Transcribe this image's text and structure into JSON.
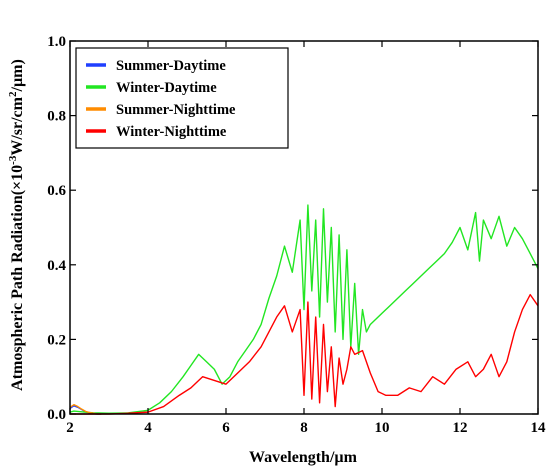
{
  "chart_data": {
    "type": "line",
    "title": "",
    "xlabel": "Wavelength/µm",
    "ylabel_main": "Atmospheric Path Radiation(×10",
    "ylabel_sup1": "-3",
    "ylabel_mid": "W/sr/cm",
    "ylabel_sup2": "2",
    "ylabel_end": "/µm)",
    "xlim": [
      2,
      14
    ],
    "ylim": [
      0,
      1.0
    ],
    "xticks": [
      "2",
      "4",
      "6",
      "8",
      "10",
      "12",
      "14"
    ],
    "yticks": [
      "0.0",
      "0.2",
      "0.4",
      "0.6",
      "0.8",
      "1.0"
    ],
    "grid": false,
    "legend_position": "top-left",
    "series": [
      {
        "name": "Summer-Daytime",
        "color": "#1f3fff",
        "x": [
          2.0,
          2.1,
          2.2,
          2.3,
          2.4,
          2.5,
          2.6,
          2.7,
          2.8
        ],
        "y": [
          0.015,
          0.022,
          0.018,
          0.012,
          0.006,
          0.003,
          0.001,
          0.0,
          0.0
        ]
      },
      {
        "name": "Winter-Daytime",
        "color": "#22e622",
        "x": [
          2.0,
          2.1,
          2.3,
          2.6,
          3.0,
          3.5,
          4.0,
          4.3,
          4.6,
          4.9,
          5.1,
          5.3,
          5.5,
          5.7,
          5.9,
          6.1,
          6.3,
          6.5,
          6.7,
          6.9,
          7.1,
          7.3,
          7.5,
          7.7,
          7.9,
          8.0,
          8.1,
          8.2,
          8.3,
          8.4,
          8.5,
          8.6,
          8.7,
          8.8,
          8.9,
          9.0,
          9.1,
          9.2,
          9.3,
          9.4,
          9.5,
          9.6,
          9.7,
          9.8,
          10.0,
          10.2,
          10.4,
          10.6,
          10.8,
          11.0,
          11.2,
          11.4,
          11.6,
          11.8,
          12.0,
          12.2,
          12.4,
          12.5,
          12.6,
          12.8,
          13.0,
          13.2,
          13.4,
          13.6,
          13.8,
          14.0
        ],
        "y": [
          0.005,
          0.008,
          0.006,
          0.003,
          0.002,
          0.003,
          0.01,
          0.03,
          0.06,
          0.1,
          0.13,
          0.16,
          0.14,
          0.12,
          0.08,
          0.1,
          0.14,
          0.17,
          0.2,
          0.24,
          0.31,
          0.37,
          0.45,
          0.38,
          0.52,
          0.28,
          0.56,
          0.33,
          0.52,
          0.26,
          0.55,
          0.3,
          0.5,
          0.22,
          0.48,
          0.2,
          0.44,
          0.18,
          0.35,
          0.16,
          0.28,
          0.22,
          0.24,
          0.25,
          0.27,
          0.29,
          0.31,
          0.33,
          0.35,
          0.37,
          0.39,
          0.41,
          0.43,
          0.46,
          0.5,
          0.44,
          0.54,
          0.41,
          0.52,
          0.47,
          0.53,
          0.45,
          0.5,
          0.47,
          0.43,
          0.39
        ]
      },
      {
        "name": "Summer-Nighttime",
        "color": "#ff8c00",
        "x": [
          2.0,
          2.1,
          2.2,
          2.3,
          2.4,
          2.5,
          2.6,
          2.7,
          2.8
        ],
        "y": [
          0.018,
          0.025,
          0.02,
          0.013,
          0.007,
          0.004,
          0.002,
          0.0,
          0.0
        ]
      },
      {
        "name": "Winter-Nighttime",
        "color": "#ff0000",
        "x": [
          2.0,
          2.5,
          3.0,
          3.5,
          4.0,
          4.4,
          4.8,
          5.1,
          5.4,
          5.7,
          6.0,
          6.3,
          6.6,
          6.9,
          7.1,
          7.3,
          7.5,
          7.7,
          7.9,
          8.0,
          8.1,
          8.2,
          8.3,
          8.4,
          8.5,
          8.6,
          8.7,
          8.8,
          8.9,
          9.0,
          9.1,
          9.2,
          9.3,
          9.5,
          9.7,
          9.9,
          10.1,
          10.4,
          10.7,
          11.0,
          11.3,
          11.6,
          11.9,
          12.2,
          12.4,
          12.6,
          12.8,
          13.0,
          13.2,
          13.4,
          13.6,
          13.8,
          14.0
        ],
        "y": [
          0.0,
          0.0,
          0.0,
          0.002,
          0.005,
          0.02,
          0.05,
          0.07,
          0.1,
          0.09,
          0.08,
          0.11,
          0.14,
          0.18,
          0.22,
          0.26,
          0.29,
          0.22,
          0.28,
          0.05,
          0.3,
          0.04,
          0.26,
          0.03,
          0.24,
          0.06,
          0.18,
          0.02,
          0.15,
          0.08,
          0.12,
          0.18,
          0.16,
          0.17,
          0.11,
          0.06,
          0.05,
          0.05,
          0.07,
          0.06,
          0.1,
          0.08,
          0.12,
          0.14,
          0.1,
          0.12,
          0.16,
          0.1,
          0.14,
          0.22,
          0.28,
          0.32,
          0.29
        ]
      }
    ]
  }
}
